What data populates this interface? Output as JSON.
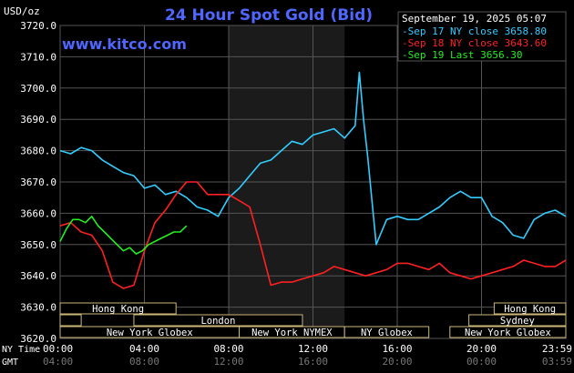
{
  "chart_data": {
    "type": "line",
    "title": "24 Hour Spot Gold (Bid)",
    "ylabel": "USD/oz",
    "watermark": "www.kitco.com",
    "timestamp": "September 19, 2025 05:07",
    "ylim": [
      3620,
      3720
    ],
    "yticks": [
      "3720.0",
      "3710.0",
      "3700.0",
      "3690.0",
      "3680.0",
      "3670.0",
      "3660.0",
      "3650.0",
      "3640.0",
      "3630.0",
      "3620.0"
    ],
    "xlim": [
      0,
      24
    ],
    "ny_time_label": "NY Time",
    "gmt_label": "GMT",
    "ny_ticks": [
      "00:00",
      "04:00",
      "08:00",
      "12:00",
      "16:00",
      "20:00",
      "23:59"
    ],
    "gmt_ticks": [
      "04:00",
      "08:00",
      "12:00",
      "16:00",
      "20:00",
      "00:00",
      "03:59"
    ],
    "shaded_range": [
      8,
      13.5
    ],
    "legend": {
      "position": "top-right",
      "entries": [
        {
          "text": "Sep 17 NY close 3658.80",
          "color": "#33ccff"
        },
        {
          "text": "Sep 18 NY close 3643.60",
          "color": "#ff2020"
        },
        {
          "text": "Sep 19 Last 3656.30",
          "color": "#22ee22"
        }
      ]
    },
    "sessions": [
      {
        "label": "Hong Kong",
        "start": 0,
        "end": 5.5,
        "row": 0
      },
      {
        "label": "Hong Kong",
        "start": 20.6,
        "end": 24,
        "row": 0
      },
      {
        "label": "London",
        "start": 3.5,
        "end": 11.5,
        "row": 1
      },
      {
        "label": "Sydney",
        "start": 19.4,
        "end": 24,
        "row": 1
      },
      {
        "label": "",
        "start": 0,
        "end": 1,
        "row": 1
      },
      {
        "label": "New York Globex",
        "start": 0,
        "end": 8.5,
        "row": 2
      },
      {
        "label": "New York NYMEX",
        "start": 8.5,
        "end": 13.5,
        "row": 2
      },
      {
        "label": "NY Globex",
        "start": 13.5,
        "end": 17.5,
        "row": 2
      },
      {
        "label": "New York Globex",
        "start": 18.5,
        "end": 24,
        "row": 2
      }
    ],
    "series": [
      {
        "name": "Sep 17",
        "color": "#33ccff",
        "x": [
          0,
          0.5,
          1,
          1.5,
          2,
          2.5,
          3,
          3.5,
          4,
          4.5,
          5,
          5.5,
          6,
          6.5,
          7,
          7.5,
          8,
          8.5,
          9,
          9.5,
          10,
          10.5,
          11,
          11.5,
          12,
          12.5,
          13,
          13.5,
          14,
          14.2,
          14.4,
          14.6,
          15,
          15.5,
          16,
          16.5,
          17,
          17.5,
          18,
          18.5,
          19,
          19.5,
          20,
          20.5,
          21,
          21.5,
          22,
          22.5,
          23,
          23.5,
          24
        ],
        "y": [
          3680,
          3679,
          3681,
          3680,
          3677,
          3675,
          3673,
          3672,
          3668,
          3669,
          3666,
          3667,
          3665,
          3662,
          3661,
          3659,
          3665,
          3668,
          3672,
          3676,
          3677,
          3680,
          3683,
          3682,
          3685,
          3686,
          3687,
          3684,
          3688,
          3705,
          3690,
          3678,
          3650,
          3658,
          3659,
          3658,
          3658,
          3660,
          3662,
          3665,
          3667,
          3665,
          3665,
          3659,
          3657,
          3653,
          3652,
          3658,
          3660,
          3661,
          3659
        ]
      },
      {
        "name": "Sep 18",
        "color": "#ff2020",
        "x": [
          0,
          0.5,
          1,
          1.5,
          2,
          2.5,
          3,
          3.5,
          4,
          4.5,
          5,
          5.5,
          6,
          6.5,
          7,
          7.5,
          8,
          8.5,
          9,
          9.5,
          10,
          10.5,
          11,
          11.5,
          12,
          12.5,
          13,
          13.5,
          14,
          14.5,
          15,
          15.5,
          16,
          16.5,
          17,
          17.5,
          18,
          18.5,
          19,
          19.5,
          20,
          20.5,
          21,
          21.5,
          22,
          22.5,
          23,
          23.5,
          24
        ],
        "y": [
          3656,
          3657,
          3654,
          3653,
          3648,
          3638,
          3636,
          3637,
          3648,
          3657,
          3661,
          3666,
          3670,
          3670,
          3666,
          3666,
          3666,
          3664,
          3662,
          3650,
          3637,
          3638,
          3638,
          3639,
          3640,
          3641,
          3643,
          3642,
          3641,
          3640,
          3641,
          3642,
          3644,
          3644,
          3643,
          3642,
          3644,
          3641,
          3640,
          3639,
          3640,
          3641,
          3642,
          3643,
          3645,
          3644,
          3643,
          3643,
          3645
        ]
      },
      {
        "name": "Sep 19",
        "color": "#22ee22",
        "x": [
          0,
          0.3,
          0.6,
          0.9,
          1.2,
          1.5,
          1.8,
          2.1,
          2.4,
          2.7,
          3,
          3.3,
          3.6,
          3.9,
          4.2,
          4.5,
          4.8,
          5.1,
          5.4,
          5.7,
          6
        ],
        "y": [
          3651,
          3655,
          3658,
          3658,
          3657,
          3659,
          3656,
          3654,
          3652,
          3650,
          3648,
          3649,
          3647,
          3648,
          3650,
          3651,
          3652,
          3653,
          3654,
          3654,
          3656
        ]
      }
    ]
  }
}
